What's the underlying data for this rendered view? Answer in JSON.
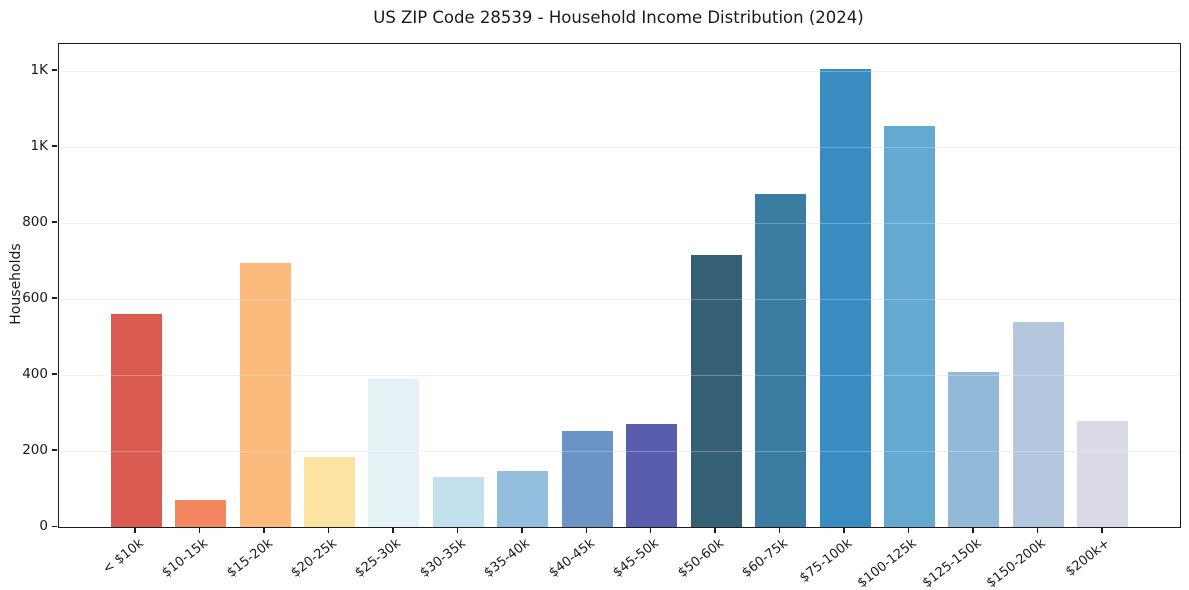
{
  "chart_data": {
    "type": "bar",
    "title": "US ZIP Code 28539 - Household Income Distribution (2024)",
    "xlabel": "",
    "ylabel": "Households",
    "categories": [
      "< $10k",
      "$10-15k",
      "$15-20k",
      "$20-25k",
      "$25-30k",
      "$30-35k",
      "$35-40k",
      "$40-45k",
      "$45-50k",
      "$50-60k",
      "$60-75k",
      "$75-100k",
      "$100-125k",
      "$125-150k",
      "$150-200k",
      "$200k+"
    ],
    "values": [
      560,
      70,
      695,
      183,
      388,
      132,
      146,
      253,
      272,
      715,
      875,
      1205,
      1055,
      407,
      538,
      279
    ],
    "bar_colors": [
      "#d95b52",
      "#f3875f",
      "#fcba7d",
      "#fde3a1",
      "#e4f1f5",
      "#c2e1ec",
      "#94bedd",
      "#6c93c6",
      "#5a5dac",
      "#355f74",
      "#3a7ca2",
      "#388cc0",
      "#64a9cf",
      "#93b9d9",
      "#b5c7df",
      "#d9dae5"
    ],
    "ylim": [
      0,
      1270
    ],
    "yticks": [
      {
        "value": 0,
        "label": "0"
      },
      {
        "value": 200,
        "label": "200"
      },
      {
        "value": 400,
        "label": "400"
      },
      {
        "value": 600,
        "label": "600"
      },
      {
        "value": 800,
        "label": "800"
      },
      {
        "value": 1000,
        "label": "1K"
      },
      {
        "value": 1200,
        "label": "1K"
      }
    ],
    "grid": "horizontal",
    "legend": "none"
  },
  "colors": {
    "background": "#ffffff",
    "gridline": "#eaeaea",
    "spine": "#1c1c1c",
    "text": "#1a1a1a"
  }
}
